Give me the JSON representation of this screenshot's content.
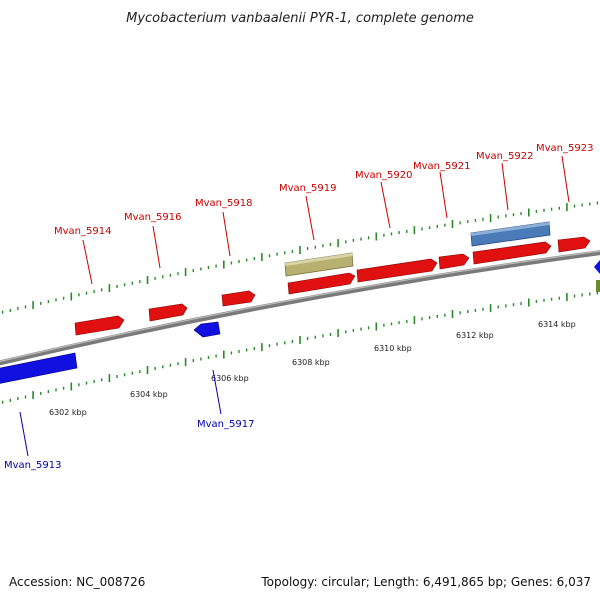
{
  "title": "Mycobacterium vanbaalenii PYR-1, complete genome",
  "footer": {
    "accession": "Accession: NC_008726",
    "summary": "Topology: circular; Length: 6,491,865 bp; Genes: 6,037"
  },
  "colors": {
    "forward_gene": "#e01010",
    "reverse_gene": "#1010e0",
    "rna_band_olive": "#b8b070",
    "rna_band_blue": "#4a7ab8",
    "backbone": "#888888",
    "tick": "#2a8a2a",
    "label_forward": "#cc0000",
    "label_reverse": "#0000aa"
  },
  "scale_ticks": [
    {
      "label": "6302 kbp"
    },
    {
      "label": "6304 kbp"
    },
    {
      "label": "6306 kbp"
    },
    {
      "label": "6308 kbp"
    },
    {
      "label": "6310 kbp"
    },
    {
      "label": "6312 kbp"
    },
    {
      "label": "6314 kbp"
    }
  ],
  "genes": [
    {
      "name": "Mvan_5913",
      "strand": "reverse"
    },
    {
      "name": "Mvan_5914",
      "strand": "forward"
    },
    {
      "name": "Mvan_5916",
      "strand": "forward"
    },
    {
      "name": "Mvan_5917",
      "strand": "reverse"
    },
    {
      "name": "Mvan_5918",
      "strand": "forward"
    },
    {
      "name": "Mvan_5919",
      "strand": "forward"
    },
    {
      "name": "Mvan_5920",
      "strand": "forward"
    },
    {
      "name": "Mvan_5921",
      "strand": "forward"
    },
    {
      "name": "Mvan_5922",
      "strand": "forward"
    },
    {
      "name": "Mvan_5923",
      "strand": "forward"
    }
  ]
}
